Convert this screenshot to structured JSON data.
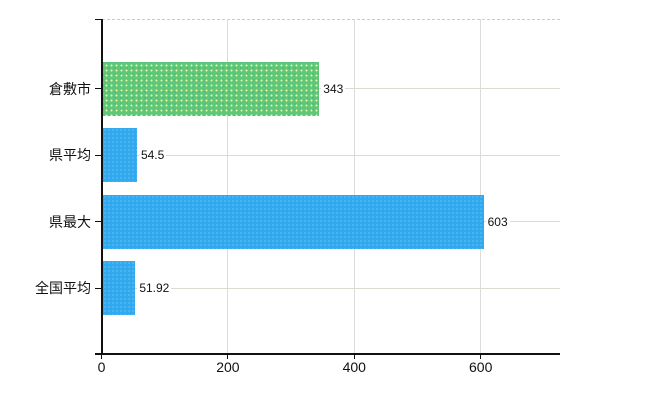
{
  "chart_data": {
    "type": "bar",
    "orientation": "horizontal",
    "title": "",
    "xlabel": "",
    "ylabel": "",
    "categories": [
      "倉敷市",
      "県平均",
      "県最大",
      "全国平均"
    ],
    "values": [
      343,
      54.5,
      603,
      51.92
    ],
    "value_labels": [
      "343",
      "54.5",
      "603",
      "51.92"
    ],
    "bar_colors": [
      "#5ec878",
      "#31a9ef",
      "#31a9ef",
      "#31a9ef"
    ],
    "x_ticks": [
      0,
      200,
      400,
      600
    ],
    "x_tick_labels": [
      "0",
      "200",
      "400",
      "600"
    ],
    "xlim": [
      0,
      725
    ],
    "grid": true,
    "legend": "none",
    "colors": {
      "highlight_bar": "#5ec878",
      "default_bar": "#31a9ef",
      "gridline": "#dcdcdc",
      "boundary_dash": "#cccccc",
      "axis": "#111111",
      "text": "#111111",
      "background": "#ffffff"
    }
  }
}
